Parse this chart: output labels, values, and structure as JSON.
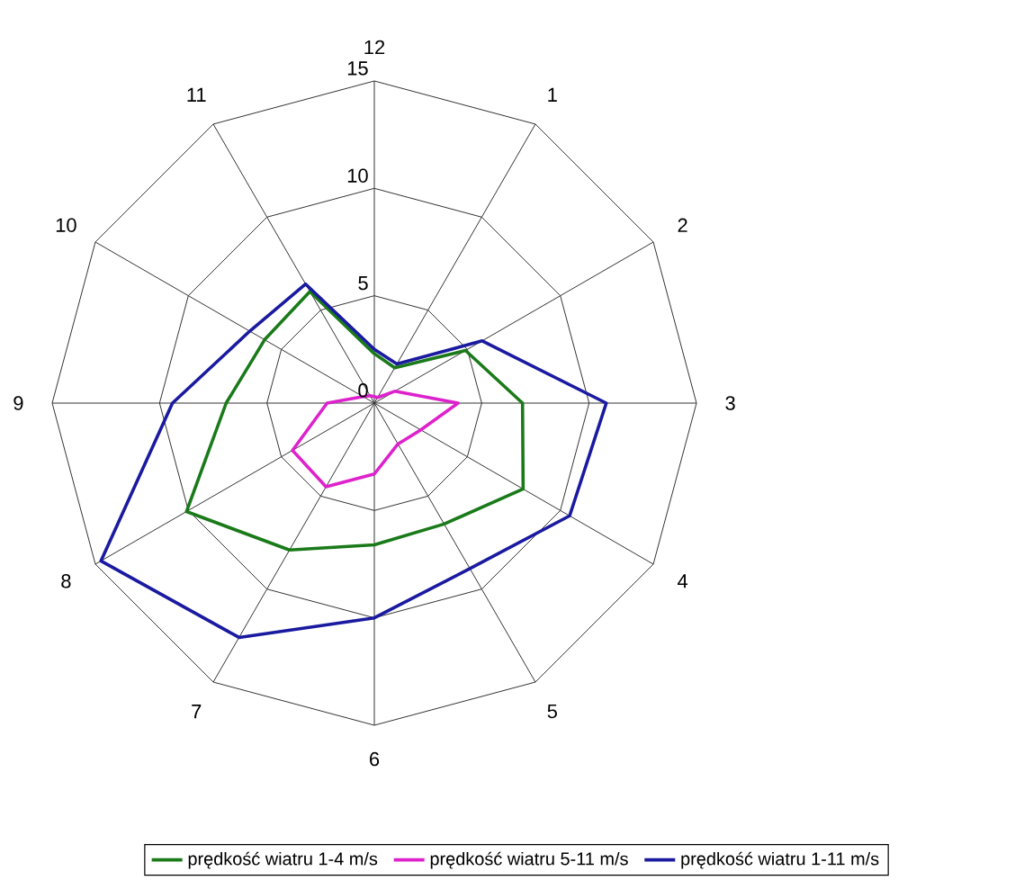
{
  "chart_data": {
    "type": "radar",
    "categories": [
      "12",
      "1",
      "2",
      "3",
      "4",
      "5",
      "6",
      "7",
      "8",
      "9",
      "10",
      "11"
    ],
    "series": [
      {
        "name": "prędkość wiatru 1-4 m/s",
        "color": "#1a7a1a",
        "values": [
          2.3,
          1.9,
          4.9,
          6.9,
          8.0,
          6.5,
          6.6,
          7.9,
          10.1,
          6.9,
          5.9,
          6.0
        ]
      },
      {
        "name": "prędkość wiatru 5-11 m/s",
        "color": "#dd22cc",
        "values": [
          0.3,
          0.3,
          1.1,
          3.9,
          2.5,
          2.2,
          3.3,
          4.5,
          4.4,
          2.2,
          0.6,
          0.4
        ]
      },
      {
        "name": "prędkość wiatru 1-11 m/s",
        "color": "#1a1aa0",
        "values": [
          2.5,
          2.1,
          5.8,
          10.8,
          10.5,
          8.9,
          10.0,
          12.6,
          14.7,
          9.4,
          6.7,
          6.4
        ]
      }
    ],
    "ylim": [
      0,
      15
    ],
    "yticks": [
      0,
      5,
      10,
      15
    ],
    "grid": true,
    "legend": "bottom"
  }
}
